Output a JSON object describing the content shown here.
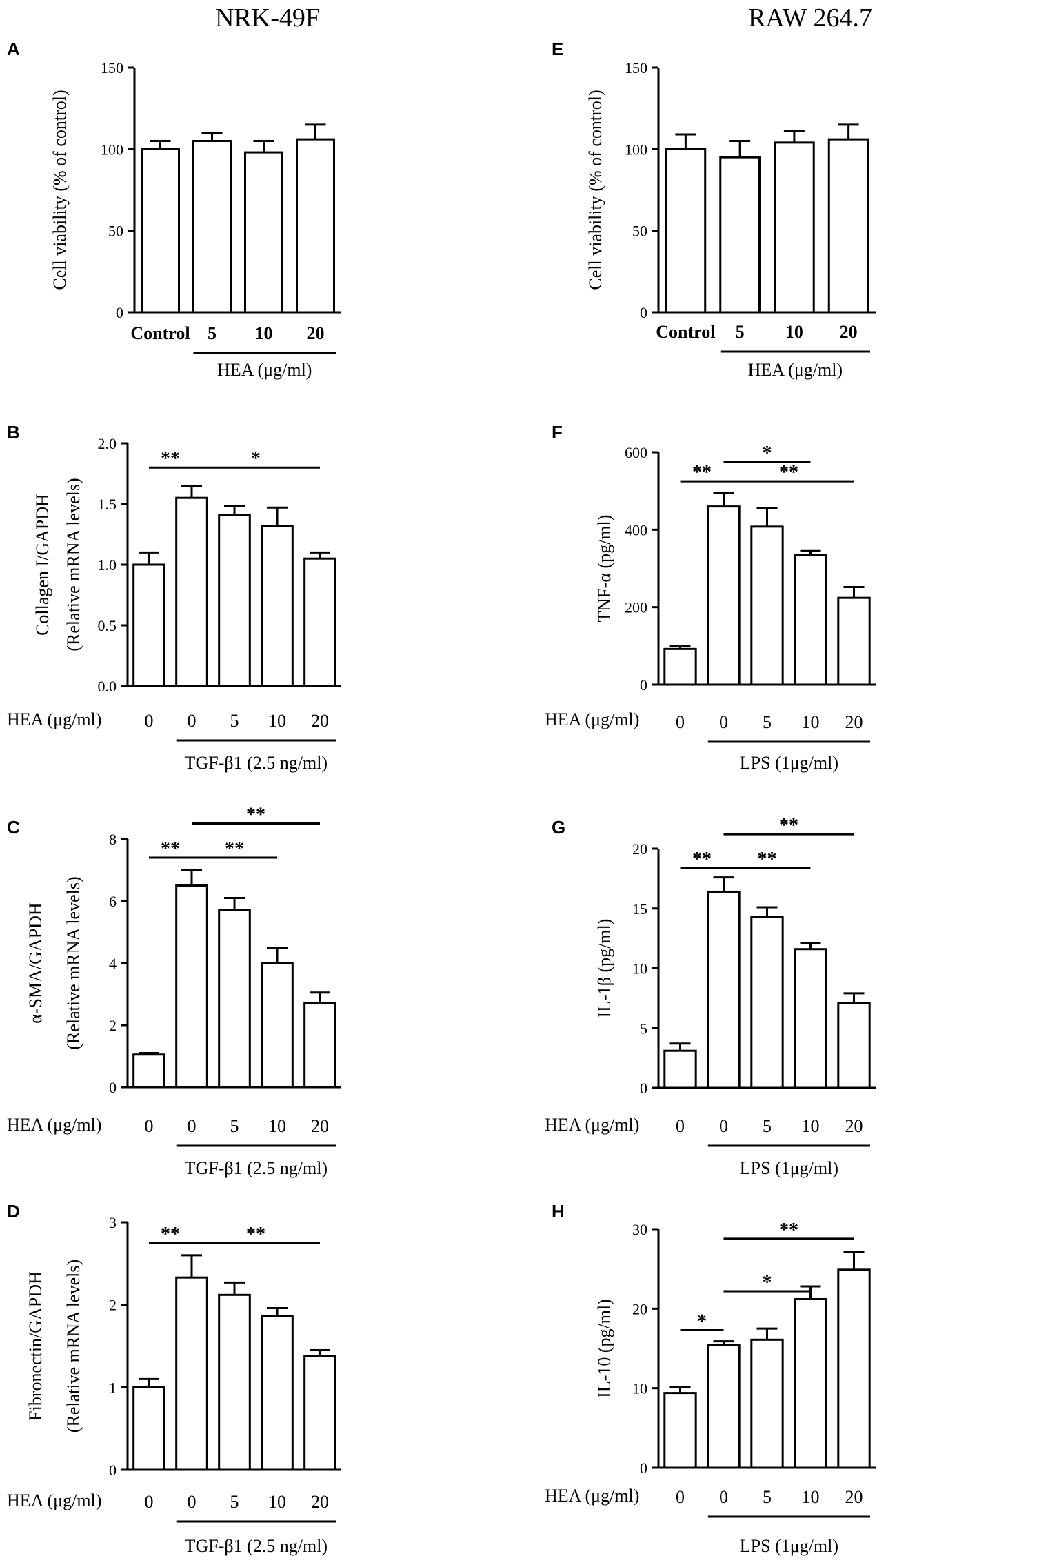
{
  "column_titles": {
    "left": "NRK-49F",
    "right": "RAW 264.7"
  },
  "chart_data": [
    {
      "panel": "A",
      "type": "bar",
      "column": "left",
      "ylabel": "Cell viability (% of control)",
      "categories": [
        "Control",
        "5",
        "10",
        "20"
      ],
      "values": [
        100,
        105,
        98,
        106
      ],
      "errors": [
        5,
        5,
        7,
        9
      ],
      "ylim": [
        0,
        150
      ],
      "yticks": [
        "0",
        "50",
        "100",
        "150"
      ],
      "bold_xticks": true,
      "row_label": "",
      "group_label": "HEA (μg/ml)",
      "group_start": 1,
      "significance": []
    },
    {
      "panel": "B",
      "type": "bar",
      "column": "left",
      "ylabel": "Collagen I/GAPDH",
      "ylabel2": "(Relative mRNA levels)",
      "categories": [
        "0",
        "0",
        "5",
        "10",
        "20"
      ],
      "values": [
        1.0,
        1.55,
        1.41,
        1.32,
        1.05
      ],
      "errors": [
        0.1,
        0.1,
        0.07,
        0.15,
        0.05
      ],
      "ylim": [
        0,
        2
      ],
      "yticks": [
        "0.0",
        "0.5",
        "1.0",
        "1.5",
        "2.0"
      ],
      "bold_xticks": false,
      "row_label": "HEA (μg/ml)",
      "group_label": "TGF-β1 (2.5 ng/ml)",
      "group_start": 1,
      "significance": [
        {
          "from": 0,
          "to": 1,
          "label": "**",
          "value": 1.8
        },
        {
          "from": 1,
          "to": 4,
          "label": "*",
          "value": 1.8
        }
      ]
    },
    {
      "panel": "C",
      "type": "bar",
      "column": "left",
      "ylabel": "α-SMA/GAPDH",
      "ylabel2": "(Relative mRNA levels)",
      "categories": [
        "0",
        "0",
        "5",
        "10",
        "20"
      ],
      "values": [
        1.05,
        6.5,
        5.7,
        4.0,
        2.7
      ],
      "errors": [
        0.05,
        0.5,
        0.4,
        0.5,
        0.35
      ],
      "ylim": [
        0,
        8
      ],
      "yticks": [
        "0",
        "2",
        "4",
        "6",
        "8"
      ],
      "bold_xticks": false,
      "row_label": "HEA (μg/ml)",
      "group_label": "TGF-β1 (2.5 ng/ml)",
      "group_start": 1,
      "significance": [
        {
          "from": 0,
          "to": 1,
          "label": "**",
          "value": 7.4
        },
        {
          "from": 1,
          "to": 3,
          "label": "**",
          "value": 7.4
        },
        {
          "from": 1,
          "to": 4,
          "label": "**",
          "value": 8.5
        }
      ]
    },
    {
      "panel": "D",
      "type": "bar",
      "column": "left",
      "ylabel": "Fibronectin/GAPDH",
      "ylabel2": "(Relative mRNA levels)",
      "categories": [
        "0",
        "0",
        "5",
        "10",
        "20"
      ],
      "values": [
        1.0,
        2.33,
        2.12,
        1.86,
        1.38
      ],
      "errors": [
        0.1,
        0.27,
        0.15,
        0.1,
        0.07
      ],
      "ylim": [
        0,
        3
      ],
      "yticks": [
        "0",
        "1",
        "2",
        "3"
      ],
      "bold_xticks": false,
      "row_label": "HEA (μg/ml)",
      "group_label": "TGF-β1 (2.5 ng/ml)",
      "group_start": 1,
      "significance": [
        {
          "from": 0,
          "to": 1,
          "label": "**",
          "value": 2.75
        },
        {
          "from": 1,
          "to": 4,
          "label": "**",
          "value": 2.75
        }
      ]
    },
    {
      "panel": "E",
      "type": "bar",
      "column": "right",
      "ylabel": "Cell viability (% of control)",
      "categories": [
        "Control",
        "5",
        "10",
        "20"
      ],
      "values": [
        100,
        95,
        104,
        106
      ],
      "errors": [
        9,
        10,
        7,
        9
      ],
      "ylim": [
        0,
        150
      ],
      "yticks": [
        "0",
        "50",
        "100",
        "150"
      ],
      "bold_xticks": true,
      "row_label": "",
      "group_label": "HEA (μg/ml)",
      "group_start": 1,
      "significance": []
    },
    {
      "panel": "F",
      "type": "bar",
      "column": "right",
      "ylabel": "TNF-α (pg/ml)",
      "categories": [
        "0",
        "0",
        "5",
        "10",
        "20"
      ],
      "values": [
        92,
        460,
        408,
        335,
        224
      ],
      "errors": [
        8,
        35,
        48,
        10,
        28
      ],
      "ylim": [
        0,
        600
      ],
      "yticks": [
        "0",
        "200",
        "400",
        "600"
      ],
      "bold_xticks": false,
      "row_label": "HEA (μg/ml)",
      "group_label": "LPS (1μg/ml)",
      "group_start": 1,
      "significance": [
        {
          "from": 0,
          "to": 1,
          "label": "**",
          "value": 525
        },
        {
          "from": 1,
          "to": 3,
          "label": "*",
          "value": 575
        },
        {
          "from": 1,
          "to": 4,
          "label": "**",
          "value": 525
        }
      ]
    },
    {
      "panel": "G",
      "type": "bar",
      "column": "right",
      "ylabel": "IL-1β (pg/ml)",
      "categories": [
        "0",
        "0",
        "5",
        "10",
        "20"
      ],
      "values": [
        3.1,
        16.4,
        14.3,
        11.6,
        7.1
      ],
      "errors": [
        0.6,
        1.2,
        0.8,
        0.5,
        0.8
      ],
      "ylim": [
        0,
        20
      ],
      "yticks": [
        "0",
        "5",
        "10",
        "15",
        "20"
      ],
      "bold_xticks": false,
      "row_label": "HEA (μg/ml)",
      "group_label": "LPS (1μg/ml)",
      "group_start": 1,
      "significance": [
        {
          "from": 0,
          "to": 1,
          "label": "**",
          "value": 18.4
        },
        {
          "from": 1,
          "to": 3,
          "label": "**",
          "value": 18.4
        },
        {
          "from": 1,
          "to": 4,
          "label": "**",
          "value": 21.2
        }
      ]
    },
    {
      "panel": "H",
      "type": "bar",
      "column": "right",
      "ylabel": "IL-10 (pg/ml)",
      "categories": [
        "0",
        "0",
        "5",
        "10",
        "20"
      ],
      "values": [
        9.4,
        15.4,
        16.1,
        21.2,
        24.9
      ],
      "errors": [
        0.7,
        0.5,
        1.4,
        1.6,
        2.2
      ],
      "ylim": [
        0,
        30
      ],
      "yticks": [
        "0",
        "10",
        "20",
        "30"
      ],
      "bold_xticks": false,
      "row_label": "HEA (μg/ml)",
      "group_label": "LPS (1μg/ml)",
      "group_start": 1,
      "significance": [
        {
          "from": 0,
          "to": 1,
          "label": "*",
          "value": 17.3
        },
        {
          "from": 1,
          "to": 3,
          "label": "*",
          "value": 22.2
        },
        {
          "from": 1,
          "to": 4,
          "label": "**",
          "value": 28.8
        }
      ]
    }
  ]
}
